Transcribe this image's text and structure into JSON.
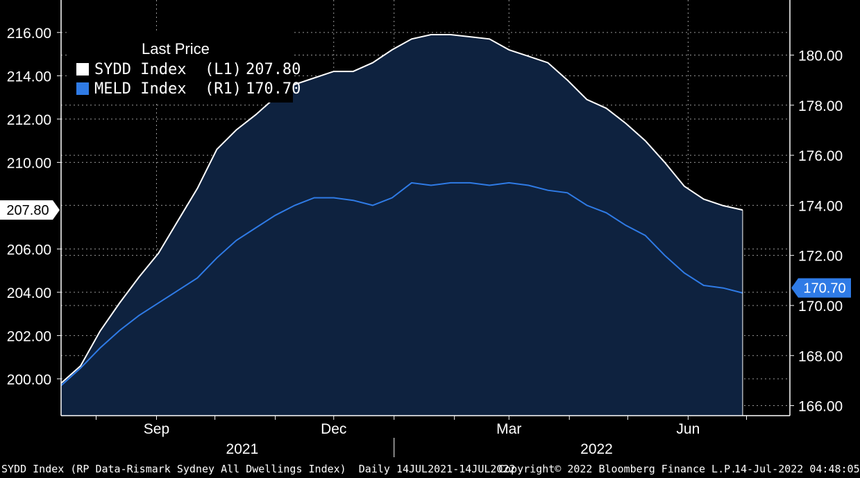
{
  "chart_data": {
    "type": "line",
    "legend_title": "Last Price",
    "legend_position": "top-left",
    "grid": true,
    "x_labels": [
      {
        "date": "2021-09-01",
        "label": "Sep"
      },
      {
        "date": "2021-12-01",
        "label": "Dec"
      },
      {
        "date": "2022-03-01",
        "label": "Mar"
      },
      {
        "date": "2022-06-01",
        "label": "Jun"
      }
    ],
    "year_labels": [
      {
        "date": "2021-10-15",
        "label": "2021"
      },
      {
        "date": "2022-04-15",
        "label": "2022"
      }
    ],
    "y_left": {
      "ticks": [
        "200.00",
        "202.00",
        "204.00",
        "206.00",
        "210.00",
        "212.00",
        "214.00",
        "216.00"
      ],
      "range": [
        198.3,
        217.5
      ]
    },
    "y_right": {
      "ticks": [
        "166.00",
        "168.00",
        "170.00",
        "172.00",
        "174.00",
        "176.00",
        "178.00",
        "180.00"
      ],
      "range": [
        165.6,
        182.2
      ]
    },
    "series": [
      {
        "name": "SYDD Index",
        "axis": "L1",
        "color": "#ffffff",
        "last_label": "207.80",
        "points": [
          [
            "2021-07-14",
            199.8
          ],
          [
            "2021-07-24",
            200.6
          ],
          [
            "2021-08-03",
            202.2
          ],
          [
            "2021-08-13",
            203.5
          ],
          [
            "2021-08-23",
            204.7
          ],
          [
            "2021-09-02",
            205.8
          ],
          [
            "2021-09-12",
            207.3
          ],
          [
            "2021-09-22",
            208.8
          ],
          [
            "2021-10-02",
            210.6
          ],
          [
            "2021-10-12",
            211.5
          ],
          [
            "2021-10-22",
            212.2
          ],
          [
            "2021-11-01",
            213.0
          ],
          [
            "2021-11-11",
            213.6
          ],
          [
            "2021-11-21",
            213.9
          ],
          [
            "2021-12-01",
            214.2
          ],
          [
            "2021-12-11",
            214.2
          ],
          [
            "2021-12-21",
            214.6
          ],
          [
            "2021-12-31",
            215.2
          ],
          [
            "2022-01-10",
            215.7
          ],
          [
            "2022-01-20",
            215.9
          ],
          [
            "2022-01-30",
            215.9
          ],
          [
            "2022-02-09",
            215.8
          ],
          [
            "2022-02-19",
            215.7
          ],
          [
            "2022-03-01",
            215.2
          ],
          [
            "2022-03-11",
            214.9
          ],
          [
            "2022-03-21",
            214.6
          ],
          [
            "2022-03-31",
            213.8
          ],
          [
            "2022-04-10",
            212.9
          ],
          [
            "2022-04-20",
            212.5
          ],
          [
            "2022-04-30",
            211.8
          ],
          [
            "2022-05-10",
            211.0
          ],
          [
            "2022-05-20",
            210.0
          ],
          [
            "2022-05-30",
            208.9
          ],
          [
            "2022-06-09",
            208.3
          ],
          [
            "2022-06-19",
            208.0
          ],
          [
            "2022-06-29",
            207.8
          ]
        ]
      },
      {
        "name": "MELD Index",
        "axis": "R1",
        "color": "#2f7be6",
        "last_label": "170.70",
        "points": [
          [
            "2021-07-14",
            166.8
          ],
          [
            "2021-07-24",
            167.5
          ],
          [
            "2021-08-03",
            168.3
          ],
          [
            "2021-08-13",
            169.0
          ],
          [
            "2021-08-23",
            169.6
          ],
          [
            "2021-09-02",
            170.1
          ],
          [
            "2021-09-12",
            170.6
          ],
          [
            "2021-09-22",
            171.1
          ],
          [
            "2021-10-02",
            171.9
          ],
          [
            "2021-10-12",
            172.6
          ],
          [
            "2021-10-22",
            173.1
          ],
          [
            "2021-11-01",
            173.6
          ],
          [
            "2021-11-11",
            174.0
          ],
          [
            "2021-11-21",
            174.3
          ],
          [
            "2021-12-01",
            174.3
          ],
          [
            "2021-12-11",
            174.2
          ],
          [
            "2021-12-21",
            174.0
          ],
          [
            "2021-12-31",
            174.3
          ],
          [
            "2022-01-10",
            174.9
          ],
          [
            "2022-01-20",
            174.8
          ],
          [
            "2022-01-30",
            174.9
          ],
          [
            "2022-02-09",
            174.9
          ],
          [
            "2022-02-19",
            174.8
          ],
          [
            "2022-03-01",
            174.9
          ],
          [
            "2022-03-11",
            174.8
          ],
          [
            "2022-03-21",
            174.6
          ],
          [
            "2022-03-31",
            174.5
          ],
          [
            "2022-04-10",
            174.0
          ],
          [
            "2022-04-20",
            173.7
          ],
          [
            "2022-04-30",
            173.2
          ],
          [
            "2022-05-10",
            172.8
          ],
          [
            "2022-05-20",
            172.0
          ],
          [
            "2022-05-30",
            171.3
          ],
          [
            "2022-06-09",
            170.8
          ],
          [
            "2022-06-19",
            170.7
          ],
          [
            "2022-06-29",
            170.5
          ]
        ]
      }
    ]
  },
  "footer": {
    "description": "SYDD Index (RP Data-Rismark Sydney All Dwellings Index)  Daily 14JUL2021-14JUL2022",
    "copyright": "Copyright© 2022 Bloomberg Finance L.P.",
    "timestamp": "14-Jul-2022 04:48:05"
  },
  "colors": {
    "background": "#000000",
    "fill": "#0e223f",
    "grid": "#9a9a9a"
  }
}
